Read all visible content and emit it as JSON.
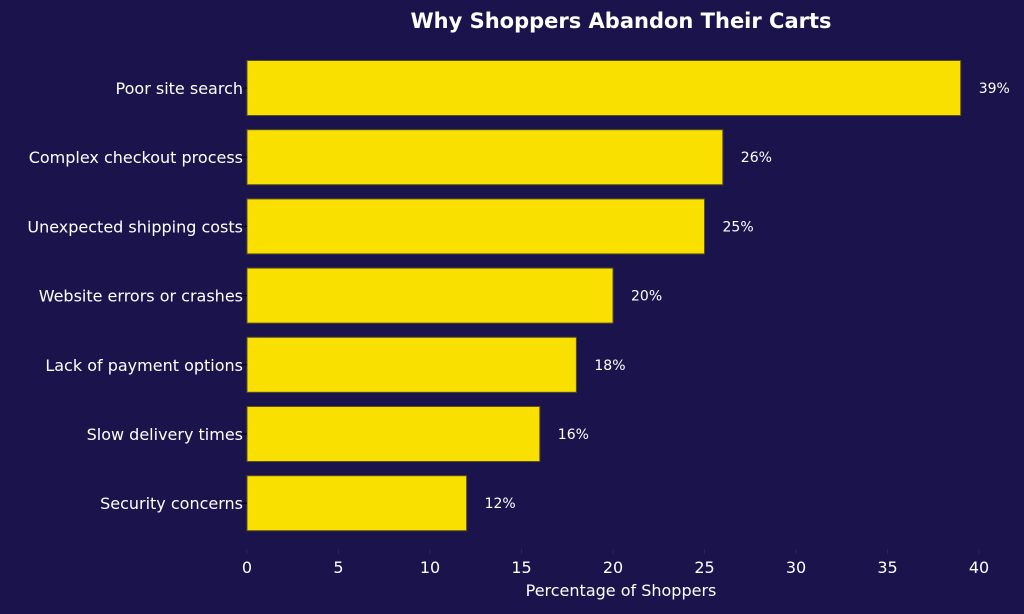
{
  "chart_data": {
    "type": "bar",
    "orientation": "horizontal",
    "title": "Why Shoppers Abandon Their Carts",
    "xlabel": "Percentage of Shoppers",
    "ylabel": "",
    "categories": [
      "Poor site search",
      "Complex checkout process",
      "Unexpected shipping costs",
      "Website errors or crashes",
      "Lack of payment options",
      "Slow delivery times",
      "Security concerns"
    ],
    "values": [
      39,
      26,
      25,
      20,
      18,
      16,
      12
    ],
    "data_labels": [
      "39%",
      "26%",
      "25%",
      "20%",
      "18%",
      "16%",
      "12%"
    ],
    "xlim": [
      0,
      40
    ],
    "xticks": [
      "0",
      "5",
      "10",
      "15",
      "20",
      "25",
      "30",
      "35",
      "40"
    ],
    "grid": false,
    "colors": {
      "background": "#1b144c",
      "bar": "#f9e000",
      "text": "#ffffff"
    }
  }
}
